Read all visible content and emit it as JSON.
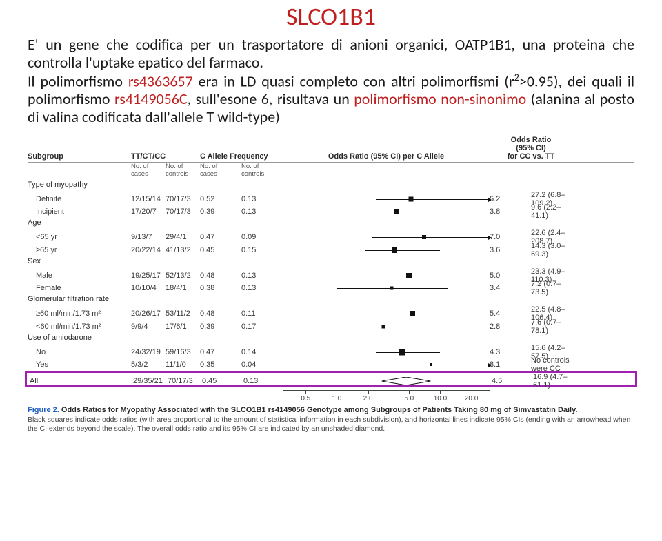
{
  "colors": {
    "title": "#bf1f1f",
    "poly1": "#bf1f1f",
    "poly2": "#bf1f1f",
    "poly3": "#bf1f1f",
    "highlight_border": "#a020b0",
    "fig_label": "#1f5fbf"
  },
  "title": "SLCO1B1",
  "para_parts": {
    "p1": "E' un gene che codifica per un trasportatore di anioni organici, OATP1B1, una proteina che controlla l'uptake epatico del farmaco.",
    "p2a": "Il polimorfismo ",
    "p2b": "rs4363657",
    "p2c": " era in LD quasi completo con altri polimorfismi (r",
    "p2d": ">0.95), dei quali il polimorfismo ",
    "p2e": "rs4149056C",
    "p2f": ", sull'esone 6, risultava un ",
    "p2g": "polimorfismo non-sinonimo",
    "p2h": " (alanina al posto di valina codificata dall'allele T wild-type)",
    "sup2": "2"
  },
  "figure": {
    "headers": {
      "subgroup": "Subgroup",
      "ttctcc": "TT/CT/CC",
      "cfreq": "C Allele Frequency",
      "or_per_c": "Odds Ratio (95% CI) per C Allele",
      "or_ratio_top": "Odds Ratio",
      "or_ratio_mid": "(95% CI)",
      "or_ratio_bot": "for CC vs. TT"
    },
    "subheaders": {
      "cases": "No. of\ncases",
      "controls": "No. of\ncontrols"
    },
    "plot": {
      "log_min": 0.3,
      "log_max": 30,
      "ref": 1.0,
      "ticks": [
        0.5,
        1.0,
        2.0,
        5.0,
        10.0,
        20.0
      ]
    },
    "groups": [
      {
        "label": "Type of myopathy",
        "rows": [
          {
            "label": "Definite",
            "cases": "12/15/14",
            "controls": "70/17/3",
            "fc": "0.52",
            "fct": "0.13",
            "or": 5.2,
            "lo": 2.4,
            "hi": 30,
            "arrow": true,
            "size": 7,
            "or_txt": "5.2",
            "ci_txt": "27.2 (6.8–109.2)"
          },
          {
            "label": "Incipient",
            "cases": "17/20/7",
            "controls": "70/17/3",
            "fc": "0.39",
            "fct": "0.13",
            "or": 3.8,
            "lo": 1.9,
            "hi": 12,
            "arrow": false,
            "size": 8,
            "or_txt": "3.8",
            "ci_txt": "9.6 (2.2–41.1)"
          }
        ]
      },
      {
        "label": "Age",
        "rows": [
          {
            "label": "<65 yr",
            "cases": "9/13/7",
            "controls": "29/4/1",
            "fc": "0.47",
            "fct": "0.09",
            "or": 7.0,
            "lo": 2.2,
            "hi": 30,
            "arrow": true,
            "size": 6,
            "or_txt": "7.0",
            "ci_txt": "22.6 (2.4–208.7)"
          },
          {
            "label": "≥65 yr",
            "cases": "20/22/14",
            "controls": "41/13/2",
            "fc": "0.45",
            "fct": "0.15",
            "or": 3.6,
            "lo": 1.9,
            "hi": 10,
            "arrow": false,
            "size": 8,
            "or_txt": "3.6",
            "ci_txt": "14.3 (3.0–69.3)"
          }
        ]
      },
      {
        "label": "Sex",
        "rows": [
          {
            "label": "Male",
            "cases": "19/25/17",
            "controls": "52/13/2",
            "fc": "0.48",
            "fct": "0.13",
            "or": 5.0,
            "lo": 2.5,
            "hi": 15,
            "arrow": false,
            "size": 8,
            "or_txt": "5.0",
            "ci_txt": "23.3 (4.9–110.3)"
          },
          {
            "label": "Female",
            "cases": "10/10/4",
            "controls": "18/4/1",
            "fc": "0.38",
            "fct": "0.13",
            "or": 3.4,
            "lo": 1.0,
            "hi": 12,
            "arrow": false,
            "size": 5,
            "or_txt": "3.4",
            "ci_txt": "7.2 (0.7–73.5)"
          }
        ]
      },
      {
        "label": "Glomerular filtration rate",
        "rows": [
          {
            "label": "≥60 ml/min/1.73 m²",
            "cases": "20/26/17",
            "controls": "53/11/2",
            "fc": "0.48",
            "fct": "0.11",
            "or": 5.4,
            "lo": 2.7,
            "hi": 14,
            "arrow": false,
            "size": 8,
            "or_txt": "5.4",
            "ci_txt": "22.5 (4.8–106.4)"
          },
          {
            "label": "<60 ml/min/1.73 m²",
            "cases": "9/9/4",
            "controls": "17/6/1",
            "fc": "0.39",
            "fct": "0.17",
            "or": 2.8,
            "lo": 0.9,
            "hi": 9,
            "arrow": false,
            "size": 5,
            "or_txt": "2.8",
            "ci_txt": "7.6 (0.7–78.1)"
          }
        ]
      },
      {
        "label": "Use of amiodarone",
        "rows": [
          {
            "label": "No",
            "cases": "24/32/19",
            "controls": "59/16/3",
            "fc": "0.47",
            "fct": "0.14",
            "or": 4.3,
            "lo": 2.4,
            "hi": 10,
            "arrow": false,
            "size": 9,
            "or_txt": "4.3",
            "ci_txt": "15.6 (4.2–57.5)"
          },
          {
            "label": "Yes",
            "cases": "5/3/2",
            "controls": "11/1/0",
            "fc": "0.35",
            "fct": "0.04",
            "or": 8.1,
            "lo": 1.2,
            "hi": 30,
            "arrow": true,
            "size": 4,
            "or_txt": "8.1",
            "ci_txt": "No controls were CC"
          }
        ]
      }
    ],
    "all_row": {
      "label": "All",
      "cases": "29/35/21",
      "controls": "70/17/3",
      "fc": "0.45",
      "fct": "0.13",
      "or": 4.5,
      "lo": 2.6,
      "hi": 7.7,
      "or_txt": "4.5",
      "ci_txt": "16.9 (4.7–61.1)"
    },
    "caption": {
      "label": "Figure 2.",
      "title": " Odds Ratios for Myopathy Associated with the SLCO1B1 rs4149056 Genotype among Subgroups of Patients Taking 80 mg of Simvastatin Daily.",
      "body": "Black squares indicate odds ratios (with area proportional to the amount of statistical information in each subdivision), and horizontal lines indicate 95% CIs (ending with an arrowhead when the CI extends beyond the scale). The overall odds ratio and its 95% CI are indicated by an unshaded diamond."
    }
  }
}
